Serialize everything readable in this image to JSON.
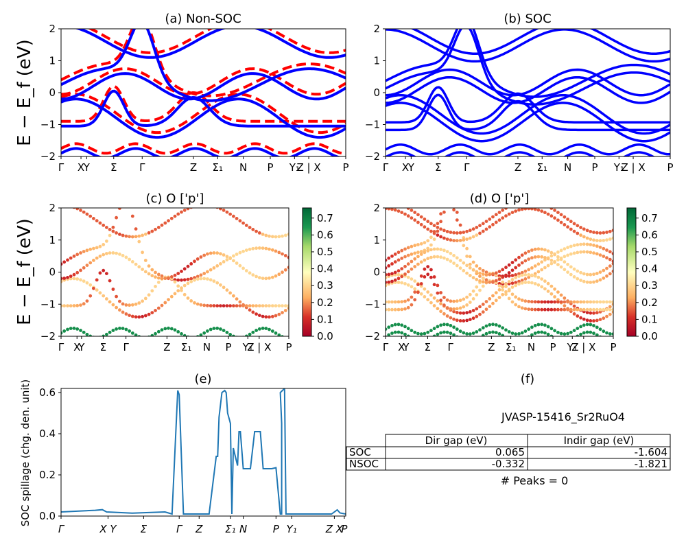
{
  "panels": {
    "a": {
      "title": "(a) Non-SOC"
    },
    "b": {
      "title": "(b) SOC"
    },
    "c": {
      "title": "(c)  O ['p']"
    },
    "d": {
      "title": "(d) O ['p']"
    },
    "e": {
      "title": "(e)"
    },
    "f": {
      "title": "(f)"
    }
  },
  "band_ylabel": "E − E_f (eV)",
  "band_yticks": [
    "2",
    "1",
    "0",
    "−1",
    "−2"
  ],
  "kpath_labels": [
    "Γ",
    "X",
    "Y",
    "Σ",
    "Γ",
    "Z",
    "Σ₁",
    "N",
    "P",
    "Y₁",
    "Z | X",
    "P"
  ],
  "colorbar_ticks": [
    "0.0",
    "0.1",
    "0.2",
    "0.3",
    "0.4",
    "0.5",
    "0.6",
    "0.7"
  ],
  "colors": {
    "nonsoc": "#ff0000",
    "soc": "#0000ff",
    "spillage": "#1f77b4"
  },
  "chart_data": [
    {
      "type": "line",
      "panel": "a",
      "title": "(a) Non-SOC",
      "ylabel": "E − E_f (eV)",
      "ylim": [
        -2,
        2
      ],
      "xticks": [
        "Γ",
        "X",
        "Y",
        "Σ",
        "Γ",
        "Z",
        "Σ₁",
        "N",
        "P",
        "Y₁",
        "Z | X",
        "P"
      ],
      "series": [
        {
          "name": "",
          "style": "dashed red",
          "values": [
            0.5,
            0.5,
            0.6,
            1.9,
            0.6,
            -0.2,
            -0.35,
            0.0,
            -0.25,
            0.85,
            0.85,
            -0.5
          ]
        },
        {
          "name": "",
          "style": "solid blue",
          "values": [
            0.25,
            0.25,
            0.3,
            1.8,
            0.25,
            -0.1,
            -0.45,
            0.1,
            -0.35,
            0.75,
            0.75,
            -0.6
          ]
        }
      ]
    },
    {
      "type": "line",
      "panel": "b",
      "title": "(b) SOC",
      "ylim": [
        -2,
        2
      ],
      "xticks": [
        "Γ",
        "X",
        "Y",
        "Σ",
        "Γ",
        "Z",
        "Σ₁",
        "N",
        "P",
        "Y₁",
        "Z | X",
        "P"
      ],
      "series": [
        {
          "name": "",
          "style": "solid blue",
          "values": [
            0.1,
            0.1,
            0.2,
            1.9,
            0.3,
            0.8,
            0.0,
            0.6,
            0.0,
            1.1,
            1.1,
            -0.2
          ]
        },
        {
          "name": "",
          "style": "solid blue",
          "values": [
            -0.8,
            -0.8,
            -0.4,
            0.2,
            -1.2,
            0.3,
            -0.6,
            0.1,
            -0.5,
            0.3,
            0.3,
            -0.8
          ]
        }
      ]
    },
    {
      "type": "scatter",
      "panel": "c",
      "title": "(c)  O ['p']",
      "ylim": [
        -2,
        2
      ],
      "colorbar_range": [
        0.0,
        0.76
      ],
      "xticks": [
        "Γ",
        "X",
        "Y",
        "Σ",
        "Γ",
        "Z",
        "Σ₁",
        "N",
        "P",
        "Y₁",
        "Z | X",
        "P"
      ]
    },
    {
      "type": "scatter",
      "panel": "d",
      "title": "(d) O ['p']",
      "ylim": [
        -2,
        2
      ],
      "colorbar_range": [
        0.0,
        0.76
      ],
      "xticks": [
        "Γ",
        "X",
        "Y",
        "Σ",
        "Γ",
        "Z",
        "Σ₁",
        "N",
        "P",
        "Y₁",
        "Z | X",
        "P"
      ]
    },
    {
      "type": "line",
      "panel": "e",
      "title": "(e)",
      "ylabel": "SOC spillage (chg. den. unit)",
      "ylim": [
        0.0,
        0.62
      ],
      "yticks": [
        "0.0",
        "0.2",
        "0.4",
        "0.6"
      ],
      "xticks": [
        "Γ",
        "X Y",
        "Σ",
        "Γ",
        "Z",
        "Σ₁",
        "N",
        "P",
        "Y₁",
        "Z X",
        "P"
      ],
      "x": [
        0,
        0.12,
        0.145,
        0.16,
        0.25,
        0.365,
        0.39,
        0.41,
        0.415,
        0.43,
        0.5,
        0.52,
        0.545,
        0.55,
        0.555,
        0.565,
        0.575,
        0.58,
        0.585,
        0.595,
        0.6,
        0.605,
        0.62,
        0.625,
        0.63,
        0.64,
        0.66,
        0.665,
        0.68,
        0.7,
        0.71,
        0.72,
        0.72,
        0.72,
        0.74,
        0.755,
        0.77,
        0.775,
        0.775,
        0.77,
        0.785,
        0.79,
        0.8,
        0.805,
        0.81,
        0.82,
        0.83,
        0.95,
        0.97,
        0.98,
        1.0
      ],
      "values": [
        0.02,
        0.028,
        0.031,
        0.02,
        0.014,
        0.02,
        0.01,
        0.61,
        0.59,
        0.01,
        0.01,
        0.01,
        0.29,
        0.29,
        0.48,
        0.6,
        0.61,
        0.6,
        0.5,
        0.45,
        0.01,
        0.33,
        0.245,
        0.41,
        0.41,
        0.23,
        0.23,
        0.23,
        0.41,
        0.41,
        0.23,
        0.23,
        0.23,
        0.23,
        0.23,
        0.235,
        0.01,
        0.01,
        0.45,
        0.6,
        0.62,
        0.01,
        0.01,
        0.01,
        0.01,
        0.01,
        0.01,
        0.01,
        0.03,
        0.015,
        0.01
      ]
    }
  ],
  "table": {
    "title": "JVASP-15416_Sr2RuO4",
    "headers": [
      "Dir gap (eV)",
      "Indir gap (eV)"
    ],
    "rows": [
      {
        "label": "SOC",
        "dir": "0.065",
        "indir": "-1.604"
      },
      {
        "label": "NSOC",
        "dir": "-0.332",
        "indir": "-1.821"
      }
    ],
    "peaks": "# Peaks = 0"
  }
}
